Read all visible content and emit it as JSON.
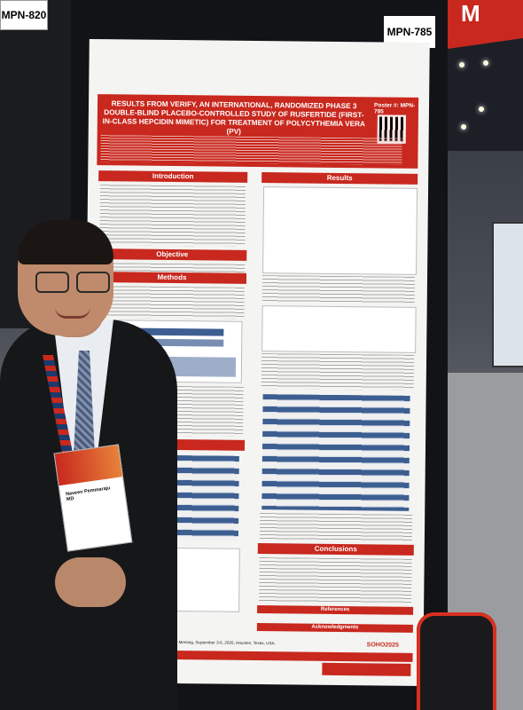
{
  "scene": {
    "neighbor_poster_tag": "MPN-820",
    "board_tag": "MPN-785",
    "banner_text": "M"
  },
  "poster": {
    "number": "Poster #: MPN-785",
    "title": "RESULTS FROM VERIFY, AN INTERNATIONAL, RANDOMIZED PHASE 3 DOUBLE-BLIND PLACEBO-CONTROLLED STUDY OF RUSFERTIDE (FIRST-IN-CLASS HEPCIDIN MIMETIC) FOR TREATMENT OF POLYCYTHEMIA VERA (PV)",
    "sections": {
      "introduction": "Introduction",
      "objective": "Objective",
      "methods": "Methods",
      "results": "Results",
      "conclusions": "Conclusions",
      "references": "References",
      "acknowledgments": "Acknowledgments"
    },
    "footer_note": "Society of Hematologic Oncology 2025 Annual Meeting, September 3-6, 2025, Houston, Texas, USA.",
    "event_tag": "SOHO2025"
  },
  "badge": {
    "name": "Naveen Pemmaraju MD"
  },
  "colors": {
    "poster_red": "#c8281e",
    "table_blue": "#3d5e91"
  }
}
